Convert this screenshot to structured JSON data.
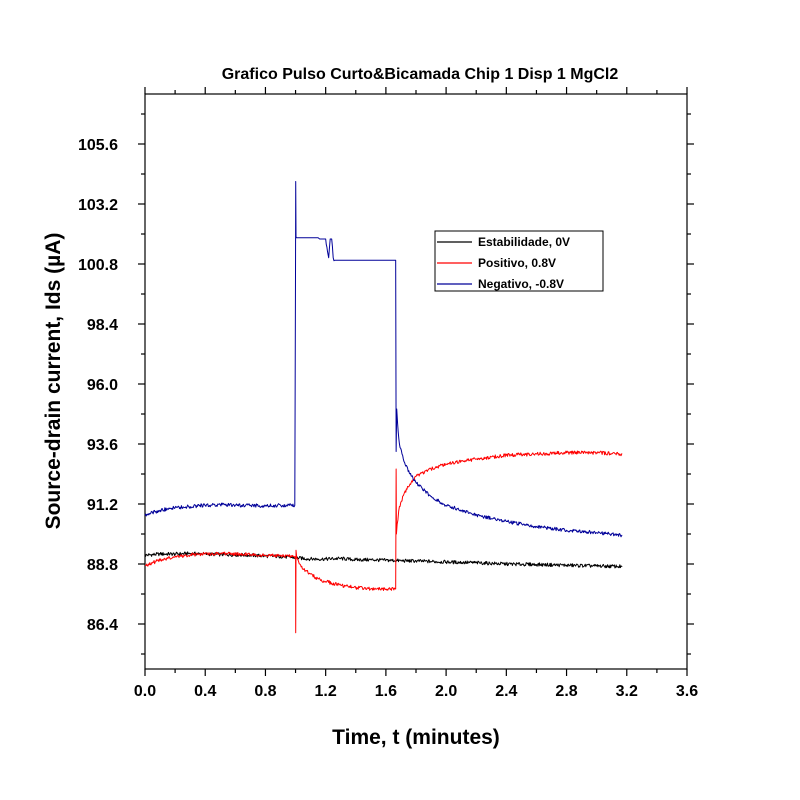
{
  "chart_data": {
    "type": "line",
    "title": "Grafico Pulso Curto&Bicamada Chip 1 Disp 1 MgCl2",
    "xlabel": "Time, t (minutes)",
    "ylabel": "Source-drain current, Ids (µA)",
    "xlim": [
      0.0,
      3.6
    ],
    "ylim": [
      84.6,
      107.6
    ],
    "x_ticks": [
      "0.0",
      "0.4",
      "0.8",
      "1.2",
      "1.6",
      "2.0",
      "2.4",
      "2.8",
      "3.2",
      "3.6"
    ],
    "y_ticks": [
      "86.4",
      "88.8",
      "91.2",
      "93.6",
      "96.0",
      "98.4",
      "100.8",
      "103.2",
      "105.6"
    ],
    "grid": false,
    "legend_position": "upper-right",
    "series": [
      {
        "name": "Estabilidade, 0V",
        "color": "#000000",
        "x": [
          0.0,
          0.1,
          0.2,
          0.3,
          0.4,
          0.5,
          0.6,
          0.7,
          0.8,
          0.9,
          1.0,
          1.1,
          1.2,
          1.3,
          1.4,
          1.5,
          1.6,
          1.7,
          1.8,
          1.9,
          2.0,
          2.2,
          2.4,
          2.6,
          2.8,
          3.0,
          3.17
        ],
        "y": [
          89.15,
          89.2,
          89.2,
          89.22,
          89.2,
          89.18,
          89.17,
          89.15,
          89.12,
          89.1,
          89.05,
          89.0,
          89.0,
          89.02,
          88.97,
          88.97,
          88.95,
          88.93,
          88.92,
          88.9,
          88.88,
          88.85,
          88.8,
          88.78,
          88.75,
          88.72,
          88.7
        ]
      },
      {
        "name": "Positivo, 0.8V",
        "color": "#ff0000",
        "x": [
          0.0,
          0.1,
          0.2,
          0.3,
          0.4,
          0.5,
          0.6,
          0.7,
          0.8,
          0.9,
          1.0,
          1.001,
          1.003,
          1.008,
          1.02,
          1.05,
          1.1,
          1.15,
          1.2,
          1.3,
          1.4,
          1.5,
          1.6,
          1.665,
          1.668,
          1.67,
          1.675,
          1.69,
          1.72,
          1.76,
          1.8,
          1.9,
          2.0,
          2.2,
          2.4,
          2.6,
          2.8,
          3.0,
          3.17
        ],
        "y": [
          88.75,
          88.95,
          89.08,
          89.16,
          89.2,
          89.22,
          89.2,
          89.18,
          89.15,
          89.12,
          89.1,
          86.05,
          89.35,
          89.05,
          88.9,
          88.6,
          88.4,
          88.2,
          88.1,
          87.95,
          87.85,
          87.8,
          87.8,
          87.8,
          92.6,
          90.0,
          90.4,
          91.1,
          91.6,
          92.0,
          92.3,
          92.6,
          92.8,
          93.0,
          93.15,
          93.2,
          93.25,
          93.25,
          93.2
        ]
      },
      {
        "name": "Negativo, -0.8V",
        "color": "#000099",
        "x": [
          0.0,
          0.05,
          0.1,
          0.2,
          0.3,
          0.4,
          0.5,
          0.6,
          0.7,
          0.8,
          0.9,
          0.995,
          1.0,
          1.001,
          1.003,
          1.005,
          1.1,
          1.15,
          1.16,
          1.2,
          1.22,
          1.23,
          1.24,
          1.25,
          1.26,
          1.3,
          1.4,
          1.5,
          1.6,
          1.665,
          1.668,
          1.672,
          1.678,
          1.69,
          1.72,
          1.76,
          1.8,
          1.9,
          2.0,
          2.2,
          2.4,
          2.6,
          2.8,
          3.0,
          3.17
        ],
        "y": [
          90.75,
          90.85,
          90.95,
          91.05,
          91.1,
          91.15,
          91.17,
          91.15,
          91.15,
          91.12,
          91.15,
          91.15,
          101.2,
          104.1,
          101.9,
          101.85,
          101.85,
          101.85,
          101.8,
          101.8,
          101.05,
          101.8,
          101.8,
          101.05,
          100.95,
          100.95,
          100.95,
          100.95,
          100.95,
          100.95,
          93.3,
          95.0,
          94.4,
          93.6,
          92.9,
          92.4,
          92.05,
          91.5,
          91.15,
          90.75,
          90.5,
          90.3,
          90.15,
          90.05,
          89.95
        ]
      }
    ]
  }
}
